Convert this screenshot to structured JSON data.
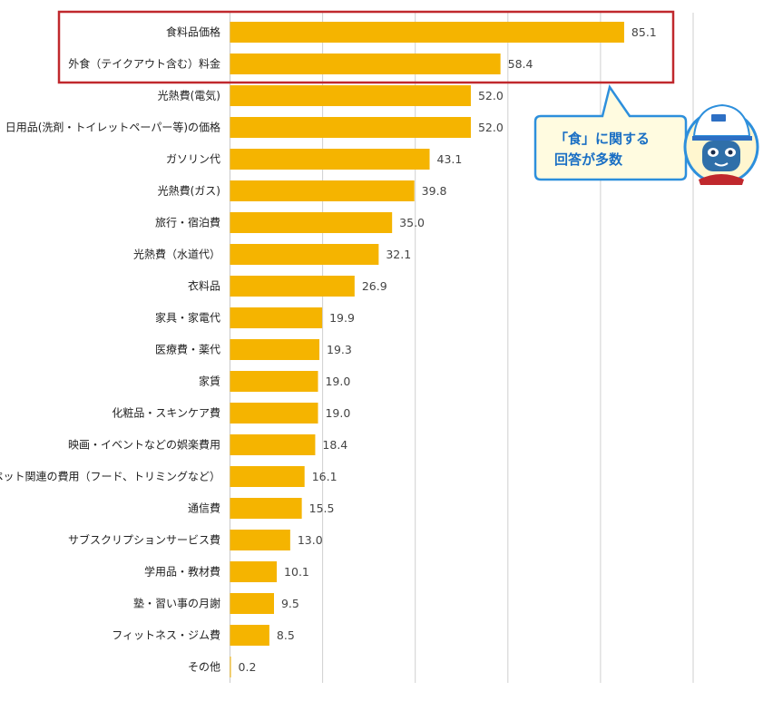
{
  "chart_data": {
    "type": "bar",
    "orientation": "horizontal",
    "categories": [
      "食料品価格",
      "外食（テイクアウト含む）料金",
      "光熱費(電気)",
      "日用品(洗剤・トイレットペーパー等)の価格",
      "ガソリン代",
      "光熱費(ガス)",
      "旅行・宿泊費",
      "光熱費（水道代）",
      "衣料品",
      "家具・家電代",
      "医療費・薬代",
      "家賃",
      "化粧品・スキンケア費",
      "映画・イベントなどの娯楽費用",
      "ペット関連の費用（フード、トリミングなど）",
      "通信費",
      "サブスクリプションサービス費",
      "学用品・教材費",
      "塾・習い事の月謝",
      "フィットネス・ジム費",
      "その他"
    ],
    "values": [
      85.1,
      58.4,
      52.0,
      52.0,
      43.1,
      39.8,
      35.0,
      32.1,
      26.9,
      19.9,
      19.3,
      19.0,
      19.0,
      18.4,
      16.1,
      15.5,
      13.0,
      10.1,
      9.5,
      8.5,
      0.2
    ],
    "value_labels": [
      "85.1",
      "58.4",
      "52.0",
      "52.0",
      "43.1",
      "39.8",
      "35.0",
      "32.1",
      "26.9",
      "19.9",
      "19.3",
      "19.0",
      "19.0",
      "18.4",
      "16.1",
      "15.5",
      "13.0",
      "10.1",
      "9.5",
      "8.5",
      "0.2"
    ],
    "xlim": [
      0,
      100
    ],
    "grid": true,
    "bar_color": "#f5b400",
    "grid_color": "#cfcfcf",
    "highlight": {
      "categories": [
        "食料品価格",
        "外食（テイクアウト含む）料金"
      ],
      "color": "#c0282d"
    }
  },
  "callout": {
    "lines": [
      "「食」に関する",
      "回答が多数"
    ],
    "border_color": "#2d8fdc",
    "fill_color": "#fffbe0",
    "text_color": "#1a6fc4"
  },
  "mascot": {
    "icon": "mascot-character-icon"
  }
}
